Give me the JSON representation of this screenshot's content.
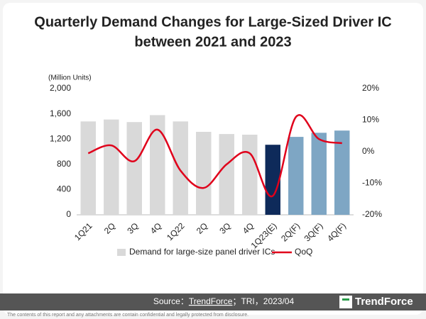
{
  "chart_data": {
    "type": "bar-line",
    "title": "Quarterly Demand Changes for Large-Sized Driver IC",
    "subtitle": "between 2021 and 2023",
    "y_label": "(Million Units)",
    "categories": [
      "1Q21",
      "2Q",
      "3Q",
      "4Q",
      "1Q22",
      "2Q",
      "3Q",
      "4Q",
      "1Q23(E)",
      "2Q(F)",
      "3Q(F)",
      "4Q(F)"
    ],
    "series": [
      {
        "name": "Demand for large-size panel driver ICs",
        "color": "#d9d9d9",
        "colors": [
          "#d9d9d9",
          "#d9d9d9",
          "#d9d9d9",
          "#d9d9d9",
          "#d9d9d9",
          "#d9d9d9",
          "#d9d9d9",
          "#d9d9d9",
          "#0e2a5a",
          "#7ea6c4",
          "#7ea6c4",
          "#7ea6c4"
        ],
        "values": [
          1480,
          1510,
          1470,
          1580,
          1480,
          1315,
          1280,
          1270,
          1110,
          1235,
          1300,
          1335
        ]
      },
      {
        "name": "QoQ",
        "color": "#e0001b",
        "axis": "y2",
        "values": [
          -0.5,
          2.0,
          -3.0,
          7.0,
          -6.0,
          -11.5,
          -4.0,
          -0.5,
          -14.0,
          11.0,
          4.0,
          2.7
        ]
      }
    ],
    "ylim": [
      0,
      2000
    ],
    "yticks": [
      0,
      400,
      800,
      {
        "value": 1200,
        "label": "1,200"
      },
      {
        "value": 1600,
        "label": "1,600"
      },
      {
        "value": 2000,
        "label": "2,000"
      }
    ],
    "y2lim": [
      -20,
      20
    ],
    "y2ticks": [
      {
        "value": -20,
        "label": "-20%"
      },
      {
        "value": -10,
        "label": "-10%"
      },
      {
        "value": 0,
        "label": "0%"
      },
      {
        "value": 10,
        "label": "10%"
      },
      {
        "value": 20,
        "label": "20%"
      }
    ],
    "source_prefix": "Source：",
    "source_brand": "TrendForce",
    "source_suffix": "；TRI，2023/04",
    "logo": "TrendForce",
    "disclaimer": "The contents of this report and any attachments are contain confidential and legally protected from disclosure."
  }
}
